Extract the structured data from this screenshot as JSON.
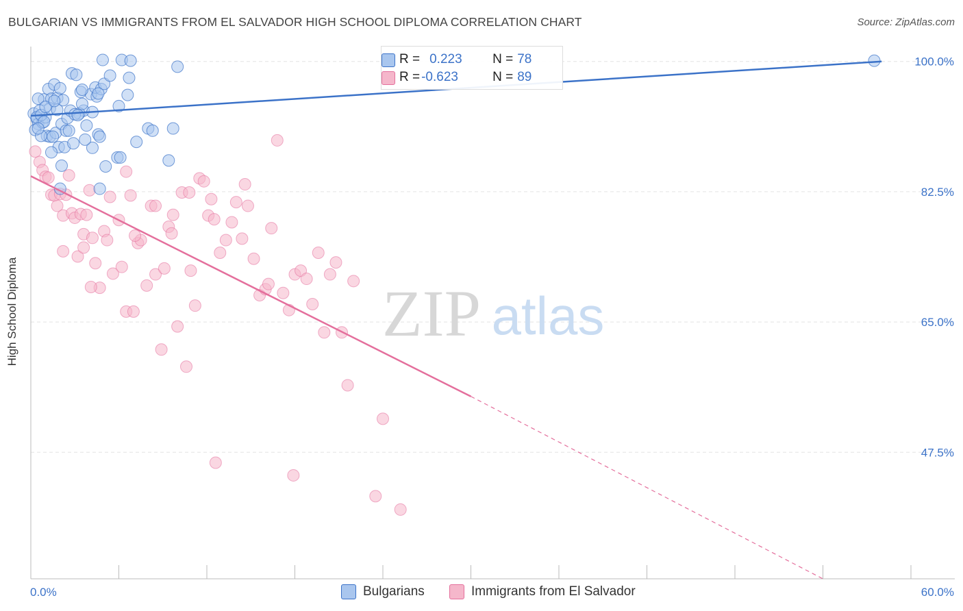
{
  "title": "BULGARIAN VS IMMIGRANTS FROM EL SALVADOR HIGH SCHOOL DIPLOMA CORRELATION CHART",
  "source": "Source: ZipAtlas.com",
  "watermark": {
    "zip": "ZIP",
    "atlas": "atlas"
  },
  "legend_top": {
    "rows": [
      {
        "r_label": "R = ",
        "r_value": "0.223",
        "n_label": "N = ",
        "n_value": "78"
      },
      {
        "r_label": "R = ",
        "r_value": "-0.623",
        "n_label": "N = ",
        "n_value": "89"
      }
    ]
  },
  "legend_bottom": [
    "Bulgarians",
    "Immigrants from El Salvador"
  ],
  "colors": {
    "blue": "#3b72c8",
    "blue_fill": "#a9c6ee",
    "pink": "#e46f9c",
    "pink_fill": "#f5b7cb",
    "grid": "#e4e4e4",
    "tick_label": "#3b72c8"
  },
  "chart_data": {
    "type": "scatter",
    "title": "BULGARIAN VS IMMIGRANTS FROM EL SALVADOR HIGH SCHOOL DIPLOMA CORRELATION CHART",
    "xlabel": "",
    "ylabel": "High School Diploma",
    "xlim": [
      0,
      60
    ],
    "ylim": [
      30.5,
      102
    ],
    "x_tick_labels": [
      "0.0%",
      "60.0%"
    ],
    "y_ticks": [
      100.0,
      82.5,
      65.0,
      47.5
    ],
    "y_tick_labels": [
      "100.0%",
      "82.5%",
      "65.0%",
      "47.5%"
    ],
    "grid": true,
    "legend_position": "top-center",
    "series": [
      {
        "name": "Bulgarians",
        "color": "#3b72c8",
        "trend": {
          "x": [
            0,
            58.0
          ],
          "y": [
            92.7,
            100.0
          ]
        },
        "points": [
          [
            0.2,
            93.0
          ],
          [
            0.4,
            92.3
          ],
          [
            0.5,
            91.6
          ],
          [
            0.3,
            90.8
          ],
          [
            0.8,
            91.8
          ],
          [
            1.0,
            92.5
          ],
          [
            0.6,
            93.4
          ],
          [
            0.9,
            94.9
          ],
          [
            0.5,
            95.0
          ],
          [
            1.2,
            96.3
          ],
          [
            1.4,
            95.0
          ],
          [
            1.6,
            96.9
          ],
          [
            1.8,
            95.1
          ],
          [
            2.0,
            96.4
          ],
          [
            2.2,
            94.8
          ],
          [
            1.1,
            90.0
          ],
          [
            1.3,
            89.9
          ],
          [
            1.7,
            90.4
          ],
          [
            2.1,
            91.6
          ],
          [
            2.4,
            90.7
          ],
          [
            1.9,
            88.5
          ],
          [
            2.3,
            88.5
          ],
          [
            2.1,
            86.0
          ],
          [
            2.8,
            98.4
          ],
          [
            3.1,
            98.2
          ],
          [
            3.4,
            95.9
          ],
          [
            3.6,
            93.4
          ],
          [
            3.3,
            93.0
          ],
          [
            3.8,
            91.4
          ],
          [
            4.1,
            95.6
          ],
          [
            4.5,
            95.3
          ],
          [
            4.4,
            96.5
          ],
          [
            4.8,
            96.3
          ],
          [
            5.0,
            97.0
          ],
          [
            3.5,
            94.3
          ],
          [
            4.2,
            93.2
          ],
          [
            4.6,
            90.2
          ],
          [
            4.7,
            89.9
          ],
          [
            4.9,
            100.2
          ],
          [
            5.4,
            98.1
          ],
          [
            6.2,
            100.2
          ],
          [
            6.0,
            94.0
          ],
          [
            6.6,
            95.5
          ],
          [
            6.8,
            100.1
          ],
          [
            6.7,
            97.8
          ],
          [
            4.2,
            88.4
          ],
          [
            5.9,
            87.1
          ],
          [
            6.1,
            87.1
          ],
          [
            4.7,
            82.9
          ],
          [
            7.2,
            89.2
          ],
          [
            8.0,
            91.0
          ],
          [
            8.3,
            90.7
          ],
          [
            9.7,
            91.0
          ],
          [
            9.4,
            86.7
          ],
          [
            10.0,
            99.3
          ],
          [
            2.0,
            82.9
          ],
          [
            1.4,
            87.8
          ],
          [
            0.7,
            90.0
          ],
          [
            1.3,
            93.7
          ],
          [
            1.8,
            93.5
          ],
          [
            2.5,
            92.4
          ],
          [
            2.7,
            93.4
          ],
          [
            3.0,
            92.9
          ],
          [
            0.4,
            92.5
          ],
          [
            0.7,
            92.8
          ],
          [
            1.0,
            93.9
          ],
          [
            1.5,
            89.9
          ],
          [
            2.6,
            90.7
          ],
          [
            3.2,
            92.8
          ],
          [
            4.6,
            95.7
          ],
          [
            3.5,
            96.2
          ],
          [
            0.9,
            91.9
          ],
          [
            1.6,
            94.7
          ],
          [
            5.1,
            85.9
          ],
          [
            2.9,
            89.0
          ],
          [
            57.5,
            100.1
          ],
          [
            0.5,
            91.0
          ],
          [
            3.7,
            89.5
          ]
        ]
      },
      {
        "name": "Immigrants from El Salvador",
        "color": "#e46f9c",
        "trend": {
          "x": [
            0,
            30.0
          ],
          "y": [
            84.6,
            55.0
          ]
        },
        "trend_dashed": {
          "x": [
            30.0,
            54.0
          ],
          "y": [
            55.0,
            30.5
          ]
        },
        "points": [
          [
            0.3,
            87.9
          ],
          [
            0.6,
            86.5
          ],
          [
            0.8,
            85.4
          ],
          [
            1.0,
            84.5
          ],
          [
            1.2,
            84.4
          ],
          [
            1.4,
            82.1
          ],
          [
            1.6,
            82.0
          ],
          [
            1.8,
            80.6
          ],
          [
            2.0,
            82.2
          ],
          [
            2.2,
            79.3
          ],
          [
            2.4,
            82.1
          ],
          [
            2.6,
            84.7
          ],
          [
            2.8,
            79.6
          ],
          [
            3.0,
            79.0
          ],
          [
            3.2,
            73.8
          ],
          [
            3.4,
            79.5
          ],
          [
            3.6,
            76.8
          ],
          [
            3.8,
            79.4
          ],
          [
            4.0,
            82.7
          ],
          [
            4.2,
            76.3
          ],
          [
            4.4,
            72.9
          ],
          [
            4.7,
            69.6
          ],
          [
            5.0,
            77.2
          ],
          [
            5.2,
            76.0
          ],
          [
            5.4,
            81.8
          ],
          [
            5.6,
            71.5
          ],
          [
            6.0,
            78.7
          ],
          [
            6.2,
            72.4
          ],
          [
            6.5,
            66.4
          ],
          [
            6.8,
            82.0
          ],
          [
            7.0,
            66.4
          ],
          [
            7.3,
            75.6
          ],
          [
            7.5,
            76.0
          ],
          [
            7.9,
            69.9
          ],
          [
            8.2,
            80.6
          ],
          [
            8.5,
            71.4
          ],
          [
            8.9,
            61.3
          ],
          [
            9.1,
            72.2
          ],
          [
            9.4,
            77.8
          ],
          [
            9.7,
            79.4
          ],
          [
            10.0,
            64.4
          ],
          [
            10.3,
            82.4
          ],
          [
            10.6,
            59.0
          ],
          [
            10.9,
            71.9
          ],
          [
            11.2,
            67.2
          ],
          [
            11.5,
            84.3
          ],
          [
            11.8,
            83.9
          ],
          [
            12.1,
            79.3
          ],
          [
            12.5,
            78.8
          ],
          [
            12.9,
            74.3
          ],
          [
            13.3,
            76.0
          ],
          [
            13.7,
            78.4
          ],
          [
            14.0,
            81.1
          ],
          [
            14.4,
            76.2
          ],
          [
            14.8,
            80.6
          ],
          [
            15.2,
            73.5
          ],
          [
            15.6,
            68.6
          ],
          [
            16.0,
            69.4
          ],
          [
            16.4,
            77.6
          ],
          [
            16.8,
            89.4
          ],
          [
            17.2,
            68.9
          ],
          [
            17.6,
            66.6
          ],
          [
            18.0,
            71.4
          ],
          [
            18.4,
            71.9
          ],
          [
            18.8,
            70.8
          ],
          [
            19.2,
            67.4
          ],
          [
            19.6,
            74.3
          ],
          [
            20.0,
            63.6
          ],
          [
            20.4,
            71.4
          ],
          [
            20.8,
            73.0
          ],
          [
            21.2,
            63.6
          ],
          [
            21.6,
            56.5
          ],
          [
            22.0,
            70.5
          ],
          [
            12.6,
            46.1
          ],
          [
            17.9,
            44.4
          ],
          [
            23.5,
            41.6
          ],
          [
            24.0,
            52.0
          ],
          [
            25.2,
            39.8
          ],
          [
            6.5,
            85.2
          ],
          [
            8.5,
            80.6
          ],
          [
            9.6,
            76.9
          ],
          [
            10.8,
            82.4
          ],
          [
            4.1,
            69.7
          ],
          [
            2.2,
            74.5
          ],
          [
            14.6,
            83.5
          ],
          [
            7.1,
            76.6
          ],
          [
            16.2,
            70.1
          ],
          [
            12.3,
            81.5
          ],
          [
            3.6,
            75.0
          ]
        ]
      }
    ]
  }
}
